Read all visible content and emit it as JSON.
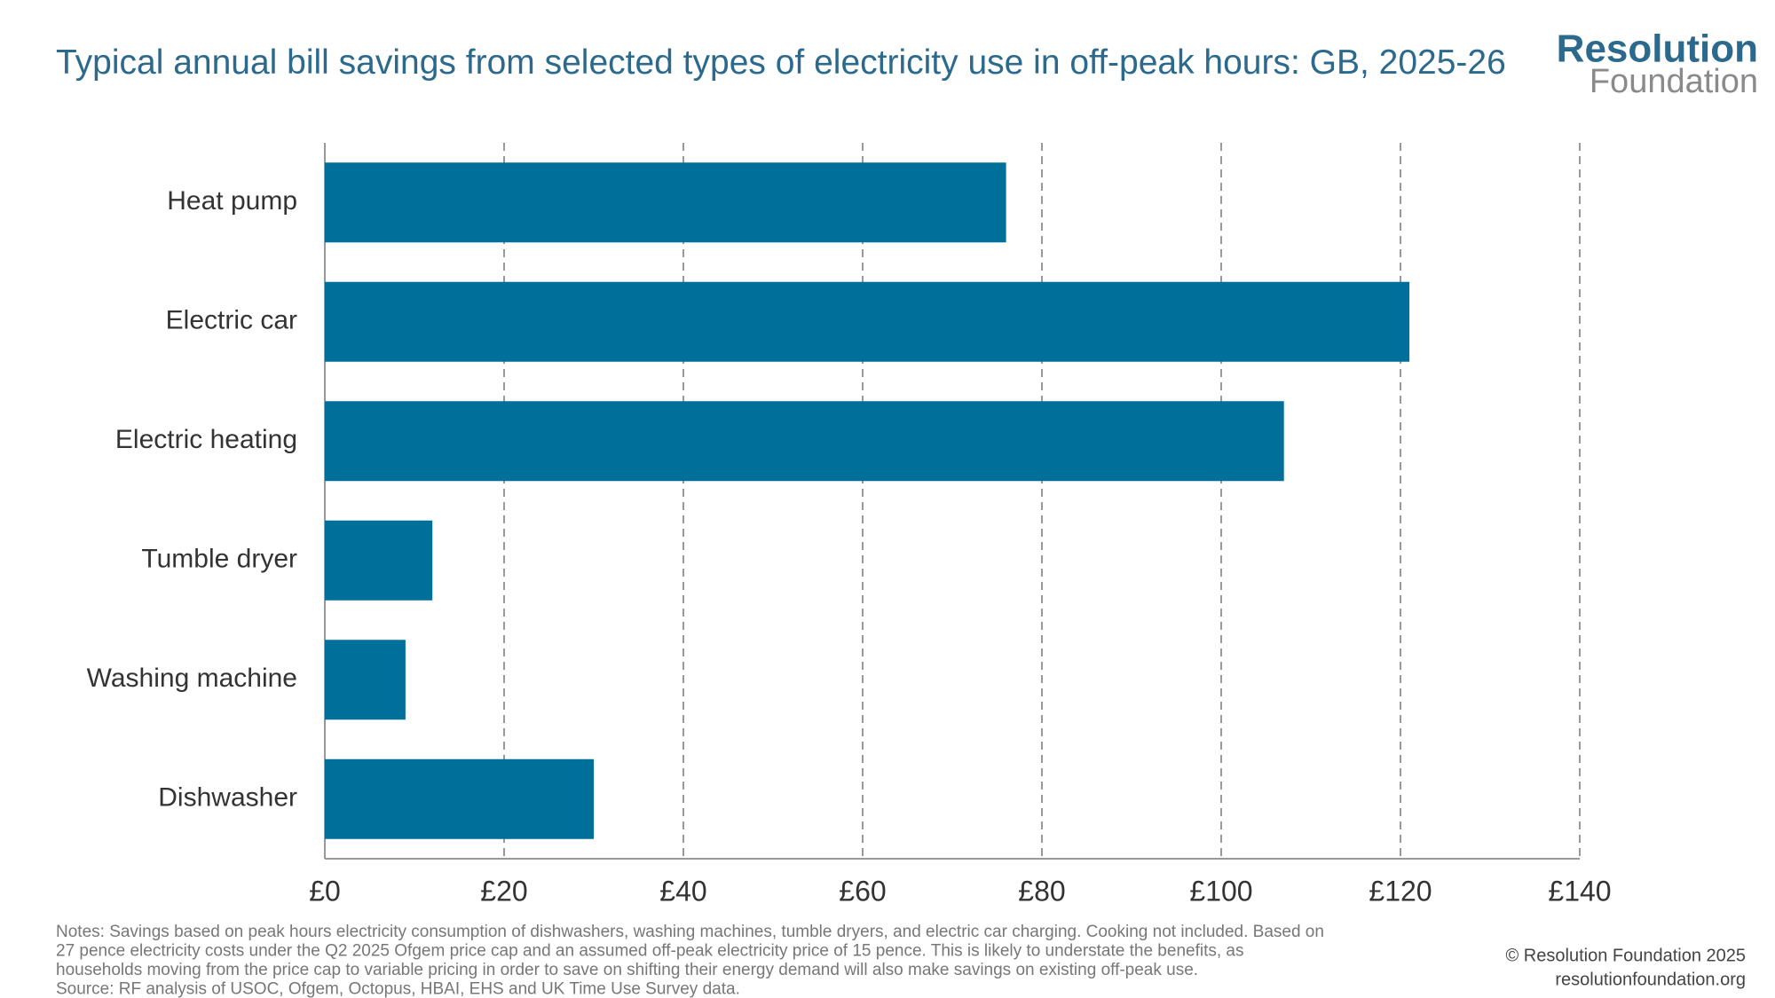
{
  "chart_data": {
    "type": "bar",
    "orientation": "horizontal",
    "title": "Typical annual bill savings from selected types of electricity use in off-peak hours: GB, 2025-26",
    "categories": [
      "Heat pump",
      "Electric car",
      "Electric heating",
      "Tumble dryer",
      "Washing machine",
      "Dishwasher"
    ],
    "values": [
      76,
      121,
      107,
      12,
      9,
      30
    ],
    "color": "#006f9a",
    "xlim": [
      0,
      140
    ],
    "xticks": [
      {
        "value": 0,
        "label": "£0"
      },
      {
        "value": 20,
        "label": "£20"
      },
      {
        "value": 40,
        "label": "£40"
      },
      {
        "value": 60,
        "label": "£60"
      },
      {
        "value": 80,
        "label": "£80"
      },
      {
        "value": 100,
        "label": "£100"
      },
      {
        "value": 120,
        "label": "£120"
      },
      {
        "value": 140,
        "label": "£140"
      }
    ],
    "grid": true,
    "notes": [
      "Notes: Savings based on peak hours electricity consumption of dishwashers, washing machines, tumble dryers, and electric car charging. Cooking not included. Based on",
      "27 pence electricity costs under the Q2 2025 Ofgem price cap and an assumed off-peak electricity price of 15 pence. This is likely to understate the benefits, as",
      "households moving from the price cap to variable pricing in order to save on shifting their energy demand will also make savings on existing off-peak use.",
      "Source: RF analysis of USOC, Ofgem, Octopus, HBAI, EHS and UK Time Use Survey data."
    ],
    "copyright": "© Resolution Foundation 2025",
    "website": "resolutionfoundation.org",
    "logo": {
      "line1": "Resolution",
      "line2": "Foundation"
    }
  }
}
